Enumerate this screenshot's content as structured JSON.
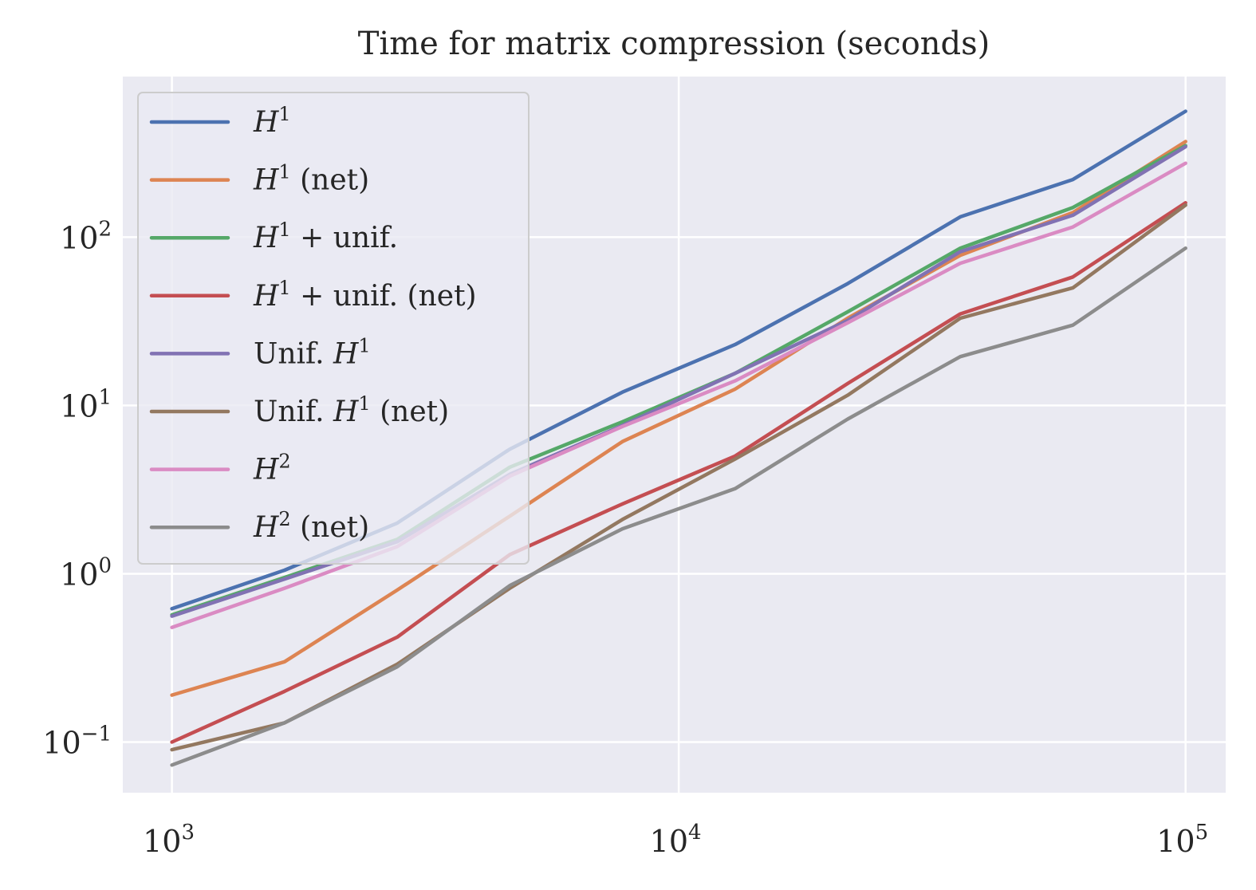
{
  "chart_data": {
    "type": "line",
    "title": "Time for matrix compression (seconds)",
    "xlabel": "",
    "ylabel": "",
    "xscale": "log",
    "yscale": "log",
    "xlim": [
      800,
      120000
    ],
    "ylim": [
      0.05,
      900
    ],
    "grid": true,
    "legend_position": "top-left",
    "xticks": [
      {
        "value": 1000,
        "base": "10",
        "exp": "3"
      },
      {
        "value": 10000,
        "base": "10",
        "exp": "4"
      },
      {
        "value": 100000,
        "base": "10",
        "exp": "5"
      }
    ],
    "yticks": [
      {
        "value": 0.1,
        "base": "10",
        "exp": "−1"
      },
      {
        "value": 1,
        "base": "10",
        "exp": "0"
      },
      {
        "value": 10,
        "base": "10",
        "exp": "1"
      },
      {
        "value": 100,
        "base": "10",
        "exp": "2"
      }
    ],
    "x": [
      1000,
      1668,
      2783,
      4642,
      7743,
      12915,
      21544,
      35938,
      59948,
      100000
    ],
    "series": [
      {
        "name": "H1",
        "label_script": "H",
        "label_sup": "1",
        "label_suffix": "",
        "color": "#4c72b0",
        "values": [
          0.62,
          1.05,
          2.0,
          5.5,
          12.0,
          23.0,
          53.0,
          132.0,
          220.0,
          560.0
        ]
      },
      {
        "name": "H1 (net)",
        "label_script": "H",
        "label_sup": "1",
        "label_suffix": " (net)",
        "color": "#dd8452",
        "values": [
          0.19,
          0.3,
          0.8,
          2.2,
          6.1,
          12.5,
          33.0,
          78.0,
          140.0,
          370.0
        ]
      },
      {
        "name": "H1 + unif.",
        "label_script": "H",
        "label_sup": "1",
        "label_suffix": " + unif.",
        "color": "#55a868",
        "values": [
          0.57,
          0.95,
          1.6,
          4.3,
          8.0,
          15.5,
          36.0,
          86.0,
          150.0,
          350.0
        ]
      },
      {
        "name": "H1 + unif. (net)",
        "label_script": "H",
        "label_sup": "1",
        "label_suffix": " + unif. (net)",
        "color": "#c44e52",
        "values": [
          0.1,
          0.2,
          0.42,
          1.3,
          2.6,
          5.0,
          13.5,
          35.0,
          58.0,
          160.0
        ]
      },
      {
        "name": "Unif. H1",
        "label_prefix": "Unif. ",
        "label_script": "H",
        "label_sup": "1",
        "label_suffix": "",
        "color": "#8172b3",
        "values": [
          0.56,
          0.93,
          1.55,
          3.9,
          7.6,
          15.5,
          32.0,
          82.0,
          135.0,
          345.0
        ]
      },
      {
        "name": "Unif. H1 (net)",
        "label_prefix": "Unif. ",
        "label_script": "H",
        "label_sup": "1",
        "label_suffix": " (net)",
        "color": "#937860",
        "values": [
          0.09,
          0.13,
          0.29,
          0.82,
          2.1,
          4.8,
          11.5,
          33.0,
          50.0,
          155.0
        ]
      },
      {
        "name": "H2",
        "label_script": "H",
        "label_sup": "2",
        "label_suffix": "",
        "color": "#da8bc3",
        "values": [
          0.48,
          0.82,
          1.45,
          3.8,
          7.5,
          14.0,
          31.0,
          70.0,
          115.0,
          275.0
        ]
      },
      {
        "name": "H2 (net)",
        "label_script": "H",
        "label_sup": "2",
        "label_suffix": " (net)",
        "color": "#8c8c8c",
        "values": [
          0.073,
          0.13,
          0.28,
          0.85,
          1.85,
          3.2,
          8.3,
          19.5,
          30.0,
          86.0
        ]
      }
    ]
  }
}
